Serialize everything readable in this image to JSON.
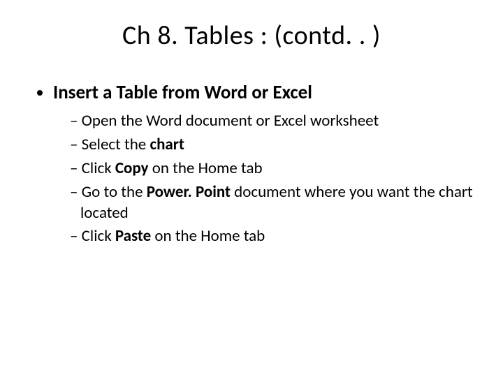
{
  "title": "Ch 8. Tables : (contd. . )",
  "bullet1": "Insert a Table from Word or Excel",
  "sub1_a": "Open the Word document or Excel worksheet",
  "sub2_a": "Select the ",
  "sub2_b": "chart",
  "sub3_a": "Click ",
  "sub3_b": "Copy ",
  "sub3_c": "on the Home tab",
  "sub4_a": "Go to the ",
  "sub4_b": "Power. Point ",
  "sub4_c": "document where you want the chart located",
  "sub5_a": "Click ",
  "sub5_b": "Paste ",
  "sub5_c": "on the Home tab"
}
